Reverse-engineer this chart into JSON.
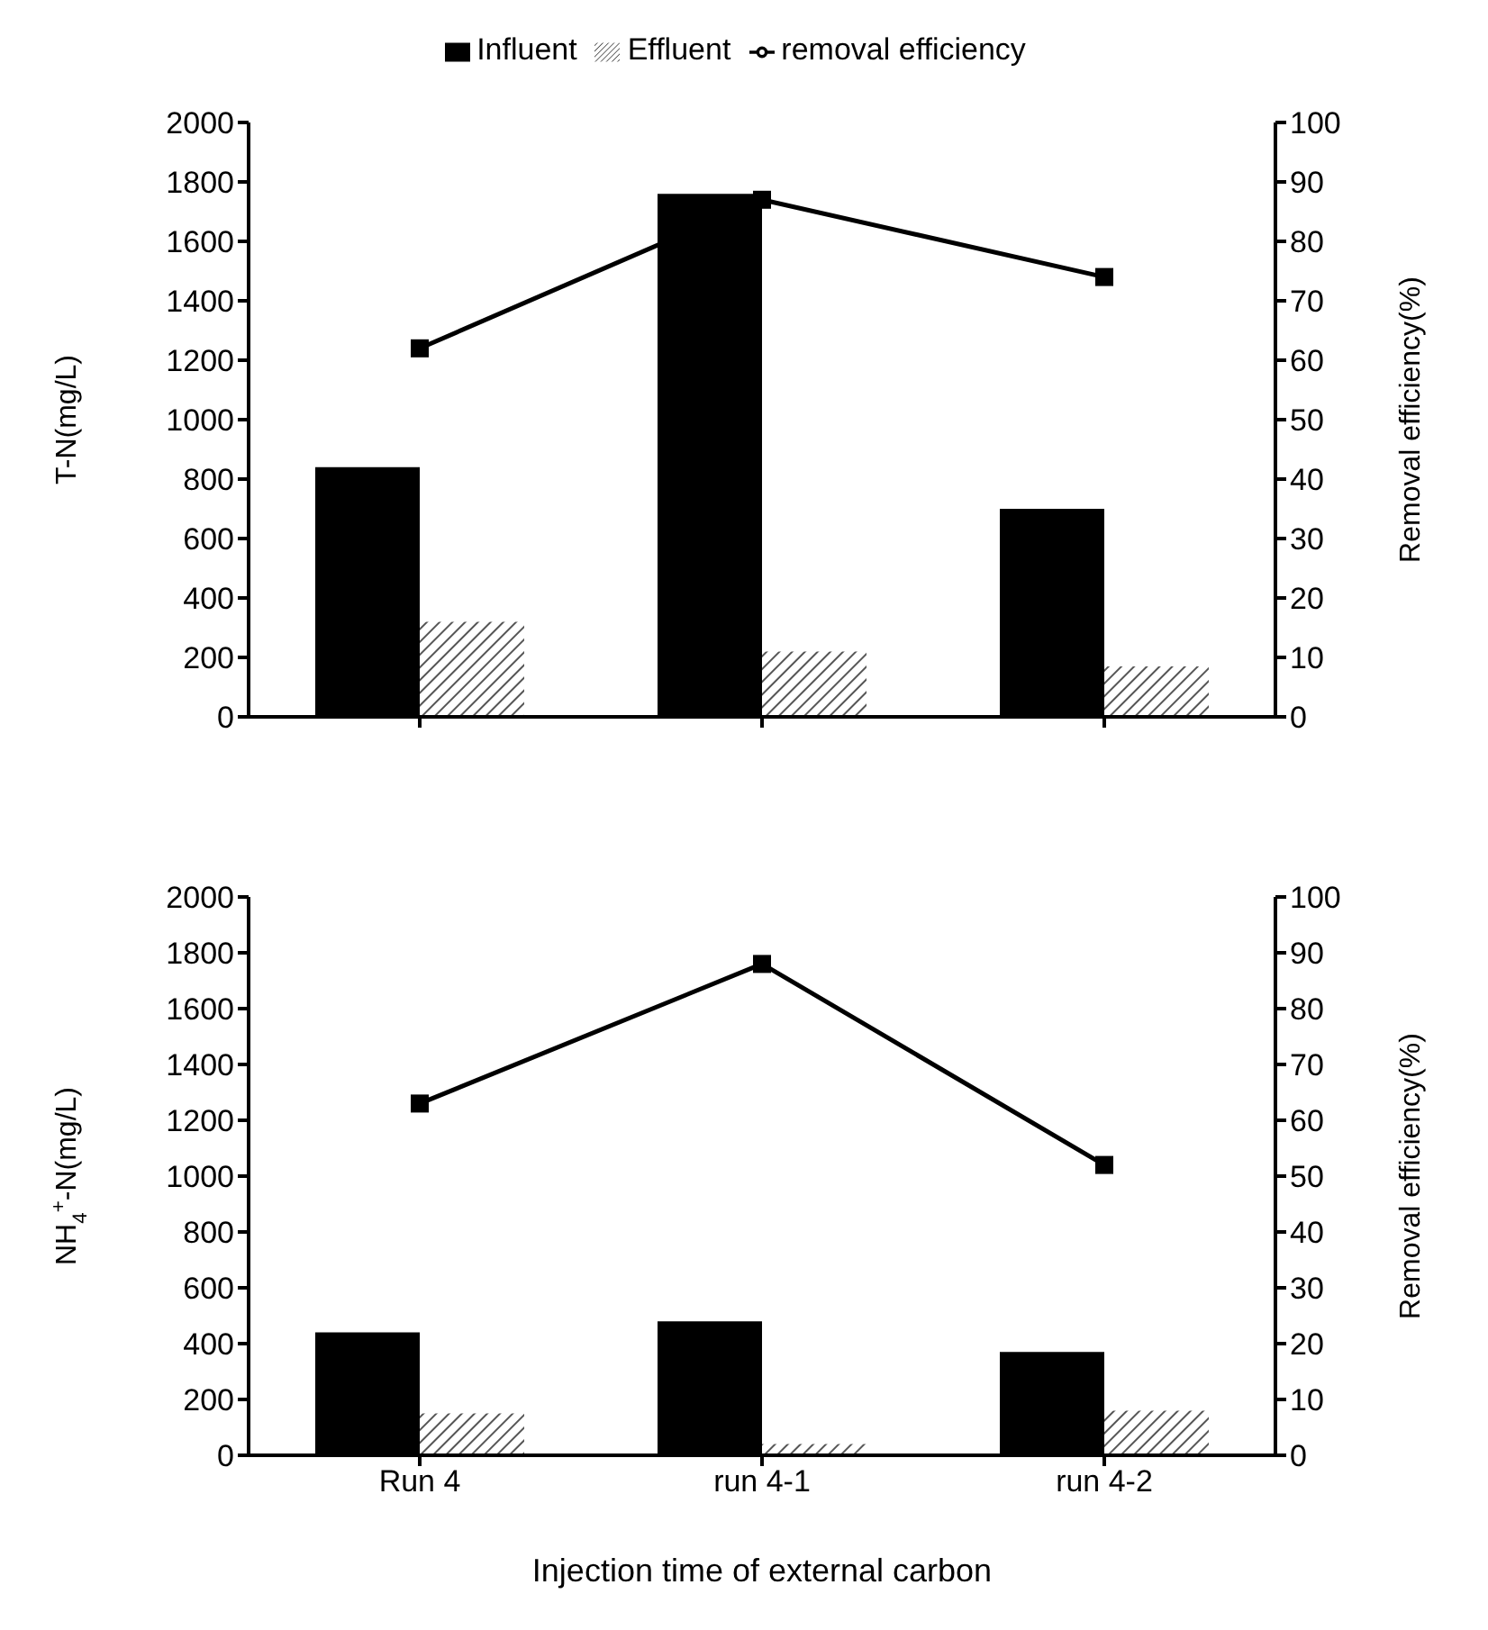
{
  "chart_data": [
    {
      "type": "bar",
      "categories": [
        null,
        null,
        null
      ],
      "ylabel": "T-N(mg/L)",
      "y2label": "Removal efficiency(%)",
      "ylim": [
        0,
        2000
      ],
      "yticks": [
        0,
        200,
        400,
        600,
        800,
        1000,
        1200,
        1400,
        1600,
        1800,
        2000
      ],
      "y2lim": [
        0,
        100
      ],
      "y2ticks": [
        0,
        10,
        20,
        30,
        40,
        50,
        60,
        70,
        80,
        90,
        100
      ],
      "tick_labels": "y",
      "legend": "top",
      "marker": "square",
      "grid": false,
      "series": [
        {
          "name": "Influent",
          "color": "#000000",
          "values": [
            840,
            1760,
            700
          ]
        },
        {
          "name": "Effluent",
          "color": "#555555",
          "values": [
            320,
            220,
            170
          ]
        },
        {
          "name": "removal efficiency",
          "type": "line",
          "axis": "y2",
          "color": "#000000",
          "values": [
            62,
            87,
            74
          ]
        }
      ]
    },
    {
      "type": "bar",
      "categories": [
        "Run 4",
        "run 4-1",
        "run 4-2"
      ],
      "xlabel": "Injection time of external carbon",
      "ylabel": "NH$_{4}$$^{+}$-N(mg/L)",
      "y2label": "Removal efficiency(%)",
      "ylim": [
        0,
        2000
      ],
      "yticks": [
        0,
        200,
        400,
        600,
        800,
        1000,
        1200,
        1400,
        1600,
        1800,
        2000
      ],
      "y2lim": [
        0,
        100
      ],
      "y2ticks": [
        0,
        10,
        20,
        30,
        40,
        50,
        60,
        70,
        80,
        90,
        100
      ],
      "marker": "square",
      "grid": false,
      "series": [
        {
          "color": "#000000",
          "values": [
            440,
            480,
            370
          ]
        },
        {
          "color": "#555555",
          "values": [
            150,
            40,
            160
          ]
        },
        {
          "type": "line",
          "axis": "y2",
          "color": "#000000",
          "values": [
            63,
            88,
            52
          ]
        }
      ]
    }
  ]
}
